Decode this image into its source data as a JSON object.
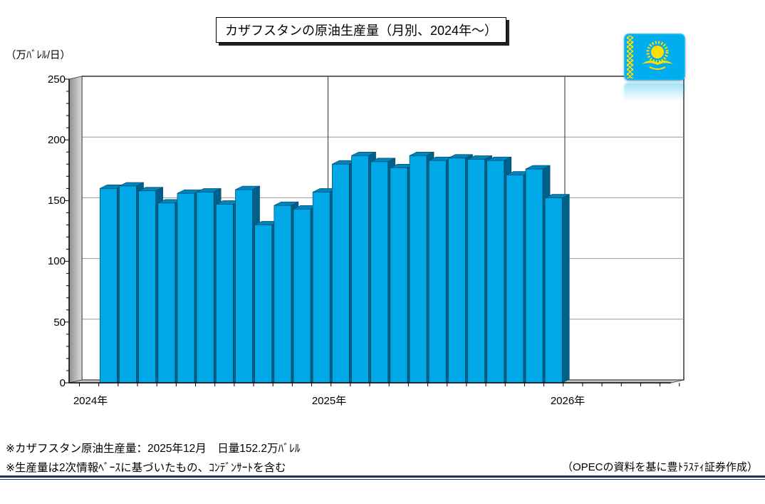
{
  "title": "カザフスタンの原油生産量（月別、2024年～）",
  "y_axis": {
    "unit_label": "（万ﾊﾞﾚﾙ/日）",
    "tick_labels": [
      "250",
      "200",
      "150",
      "100",
      "50",
      "0"
    ]
  },
  "x_axis": {
    "year_labels": [
      "2024年",
      "2025年",
      "2026年"
    ]
  },
  "flag": {
    "name": "kazakhstan-flag",
    "background": "#00AEEF",
    "emblem_color": "#FEDF00"
  },
  "footnotes": [
    "※カザフスタン原油生産量：2025年12月　日量152.2万ﾊﾞﾚﾙ",
    "※生産量は2次情報ﾍﾞｰｽに基づいたもの、ｺﾝﾃﾞﾝｻｰﾄを含む"
  ],
  "credit": "（OPECの資料を基に豊ﾄﾗｽﾃｨ証券作成）",
  "chart_data": {
    "type": "bar",
    "title": "カザフスタンの原油生産量（月別、2024年～）",
    "ylabel": "万ﾊﾞﾚﾙ/日",
    "ylim": [
      0,
      250
    ],
    "y_major_ticks": [
      0,
      50,
      100,
      150,
      200,
      250
    ],
    "y_minor_step": 10,
    "grid": "horizontal-major",
    "year_separators": [
      "2025",
      "2026"
    ],
    "categories": [
      "2024-01",
      "2024-02",
      "2024-03",
      "2024-04",
      "2024-05",
      "2024-06",
      "2024-07",
      "2024-08",
      "2024-09",
      "2024-10",
      "2024-11",
      "2024-12",
      "2025-01",
      "2025-02",
      "2025-03",
      "2025-04",
      "2025-05",
      "2025-06",
      "2025-07",
      "2025-08",
      "2025-09",
      "2025-10",
      "2025-11",
      "2025-12"
    ],
    "values": [
      160,
      162,
      158,
      148,
      156,
      157,
      147,
      159,
      130,
      146,
      143,
      157,
      180,
      187,
      182,
      177,
      187,
      183,
      185,
      184,
      183,
      171,
      176,
      152.2
    ],
    "latest_point_label": "2025年12月 日量152.2万ﾊﾞﾚﾙ",
    "bar_front_color": "#00A8E8",
    "bar_top_color": "#0084BE",
    "bar_side_color": "#00608C",
    "bar_outline_color": "#074A66",
    "gridline_color": "#999999",
    "wall_color_dark": "#8F8F8F",
    "wall_color_light": "#DCDCDC",
    "floor_color": "#BFBFBF"
  }
}
